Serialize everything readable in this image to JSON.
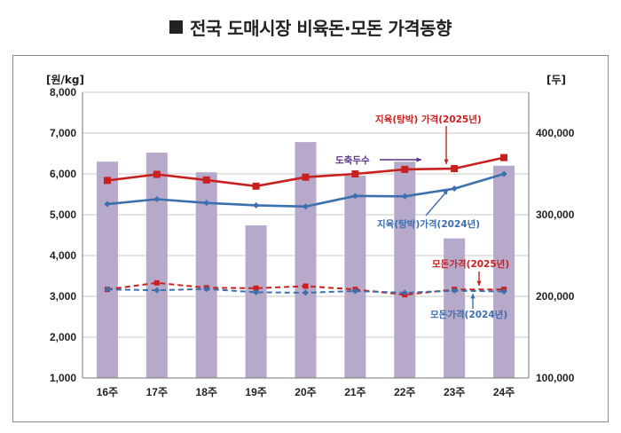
{
  "title": "전국 도매시장 비육돈·모돈 가격동향",
  "chart_data": {
    "type": "bar",
    "categories": [
      "16주",
      "17주",
      "18주",
      "19주",
      "20주",
      "21주",
      "22주",
      "23주",
      "24주"
    ],
    "left_axis": {
      "unit": "[원/kg]",
      "ylim": [
        1000,
        8000
      ],
      "ticks": [
        "1,000",
        "2,000",
        "3,000",
        "4,000",
        "5,000",
        "6,000",
        "7,000",
        "8,000"
      ]
    },
    "right_axis": {
      "unit": "[두]",
      "ylim": [
        100000,
        450000
      ],
      "ticks": [
        "100,000",
        "200,000",
        "300,000",
        "400,000"
      ]
    },
    "grid": true,
    "bars": {
      "name": "도축두수",
      "axis": "right",
      "color": "#b7a9c9",
      "values": [
        365000,
        376000,
        352000,
        287000,
        389000,
        348000,
        365000,
        271000,
        360000
      ]
    },
    "series": [
      {
        "name": "지육(탕박) 가격(2025년)",
        "type": "line",
        "axis": "left",
        "color": "#c8201e",
        "dashed": false,
        "marker": "square",
        "values": [
          5840,
          5990,
          5850,
          5700,
          5920,
          6000,
          6110,
          6130,
          6400
        ]
      },
      {
        "name": "지육(탕박)가격(2024년)",
        "type": "line",
        "axis": "left",
        "color": "#3c6fae",
        "dashed": false,
        "marker": "diamond",
        "values": [
          5260,
          5380,
          5290,
          5230,
          5200,
          5460,
          5450,
          5640,
          6000
        ]
      },
      {
        "name": "모돈가격(2025년)",
        "type": "line",
        "axis": "left",
        "color": "#c8201e",
        "dashed": true,
        "marker": "square",
        "values": [
          3170,
          3330,
          3210,
          3200,
          3250,
          3170,
          3040,
          3170,
          3170
        ]
      },
      {
        "name": "모돈가격(2024년)",
        "type": "line",
        "axis": "left",
        "color": "#3c6fae",
        "dashed": true,
        "marker": "diamond",
        "values": [
          3170,
          3150,
          3180,
          3100,
          3090,
          3130,
          3090,
          3140,
          3120
        ]
      }
    ],
    "annotations": [
      {
        "text": "지육(탕박) 가격(2025년)",
        "color": "#c8201e"
      },
      {
        "text": "도축두수",
        "color": "#5a2f8a"
      },
      {
        "text": "지육(탕박)가격(2024년)",
        "color": "#3c6fae"
      },
      {
        "text": "모돈가격(2025년)",
        "color": "#c8201e"
      },
      {
        "text": "모돈가격(2024년)",
        "color": "#3c6fae"
      }
    ]
  }
}
